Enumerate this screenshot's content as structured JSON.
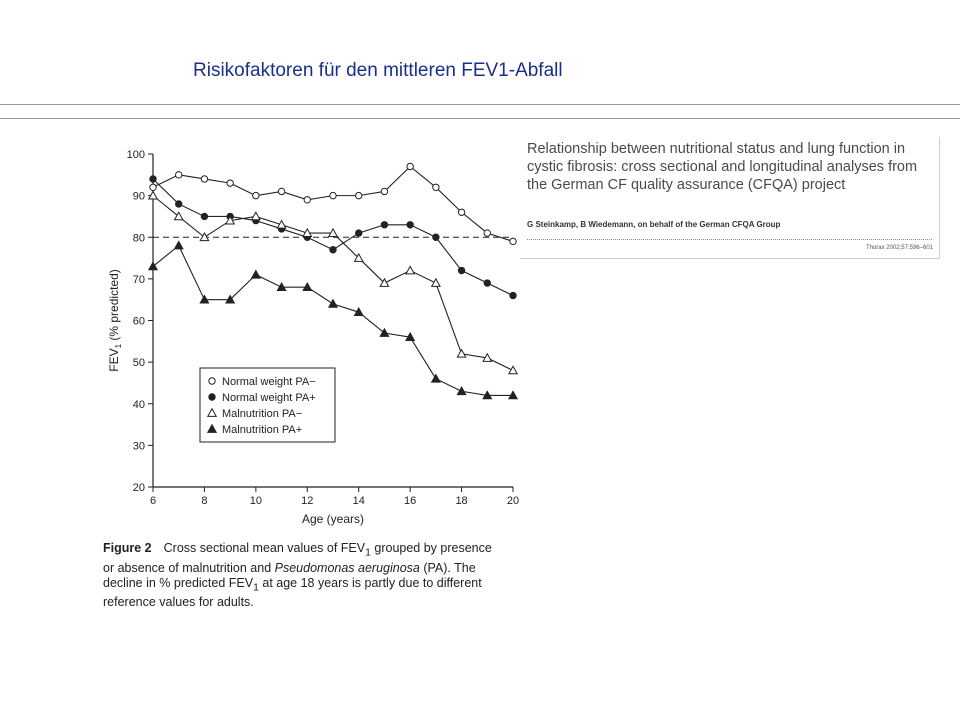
{
  "slide": {
    "title": "Risikofaktoren für den mittleren FEV1-Abfall"
  },
  "article": {
    "title": "Relationship between nutritional status and lung function in cystic fibrosis: cross sectional and longitudinal analyses from the German CF quality assurance (CFQA) project",
    "authors": "G Steinkamp, B Wiedemann, on behalf of the German CFQA Group",
    "citation": "Thorax 2002;57:596–601"
  },
  "figure": {
    "label": "Figure 2",
    "caption_parts": [
      "Cross sectional mean values of FEV",
      "1",
      " grouped by presence or absence of malnutrition and ",
      "Pseudomonas aeruginosa",
      " (PA). The decline in % predicted FEV",
      "1",
      " at age 18 years is partly due to different reference values for adults."
    ]
  },
  "chart_data": {
    "type": "line",
    "title": "",
    "xlabel": "Age (years)",
    "ylabel_parts": [
      "FEV",
      "1",
      " (% predicted)"
    ],
    "xlim": [
      6,
      20
    ],
    "ylim": [
      20,
      100
    ],
    "xticks": [
      6,
      8,
      10,
      12,
      14,
      16,
      18,
      20
    ],
    "yticks": [
      20,
      30,
      40,
      50,
      60,
      70,
      80,
      90,
      100
    ],
    "reference_line": 80,
    "grid": false,
    "legend_position": "lower-left",
    "x": [
      6,
      7,
      8,
      9,
      10,
      11,
      12,
      13,
      14,
      15,
      16,
      17,
      18,
      19,
      20
    ],
    "series": [
      {
        "name": "Normal weight PA−",
        "marker": "circle-open",
        "values": [
          92,
          95,
          94,
          93,
          90,
          91,
          89,
          90,
          90,
          91,
          97,
          92,
          86,
          81,
          79
        ]
      },
      {
        "name": "Normal weight PA+",
        "marker": "circle-filled",
        "values": [
          94,
          88,
          85,
          85,
          84,
          82,
          80,
          77,
          81,
          83,
          83,
          80,
          72,
          69,
          66
        ]
      },
      {
        "name": "Malnutrition PA−",
        "marker": "triangle-open",
        "values": [
          90,
          85,
          80,
          84,
          85,
          83,
          81,
          81,
          75,
          69,
          72,
          69,
          52,
          51,
          48
        ]
      },
      {
        "name": "Malnutrition PA+",
        "marker": "triangle-filled",
        "values": [
          73,
          78,
          65,
          65,
          71,
          68,
          68,
          64,
          62,
          57,
          56,
          46,
          43,
          42,
          42
        ]
      }
    ]
  }
}
